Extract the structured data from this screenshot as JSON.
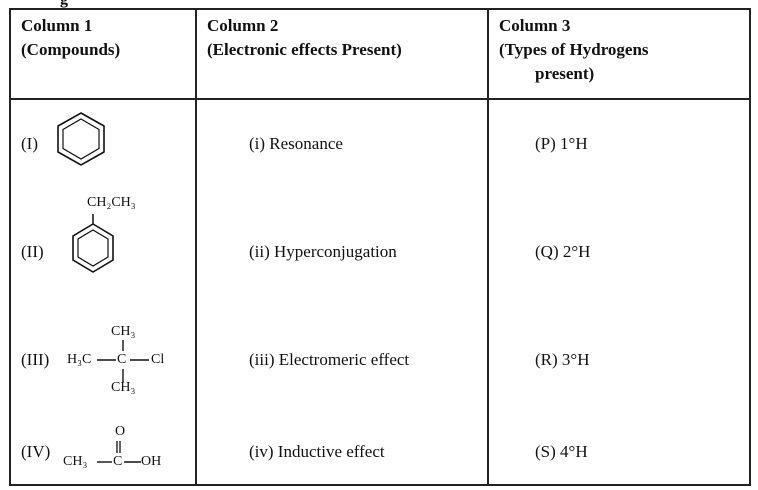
{
  "top_fragment": "g",
  "headers": {
    "col1": {
      "line1": "Column 1",
      "line2": "(Compounds)"
    },
    "col2": {
      "line1": "Column 2",
      "line2": "(Electronic effects Present)"
    },
    "col3": {
      "line1": "Column 3",
      "line2": "(Types of Hydrogens",
      "line3": "present)"
    }
  },
  "compounds": [
    {
      "label": "(I)"
    },
    {
      "label": "(II)",
      "group": "CH₂CH₃"
    },
    {
      "label": "(III)",
      "left": "H₃C",
      "center": "C",
      "right": "Cl",
      "top": "CH₃",
      "bottom": "CH₃"
    },
    {
      "label": "(IV)",
      "left": "CH₃",
      "center": "C",
      "right": "OH",
      "top": "O"
    }
  ],
  "effects": [
    {
      "label": "(i)  Resonance"
    },
    {
      "label": "(ii) Hyperconjugation"
    },
    {
      "label": "(iii) Electromeric  effect"
    },
    {
      "label": "(iv) Inductive effect"
    }
  ],
  "hydrogens": [
    {
      "label": "(P)  1°H"
    },
    {
      "label": "(Q)  2°H"
    },
    {
      "label": "(R)  3°H"
    },
    {
      "label": "(S)  4°H"
    }
  ]
}
